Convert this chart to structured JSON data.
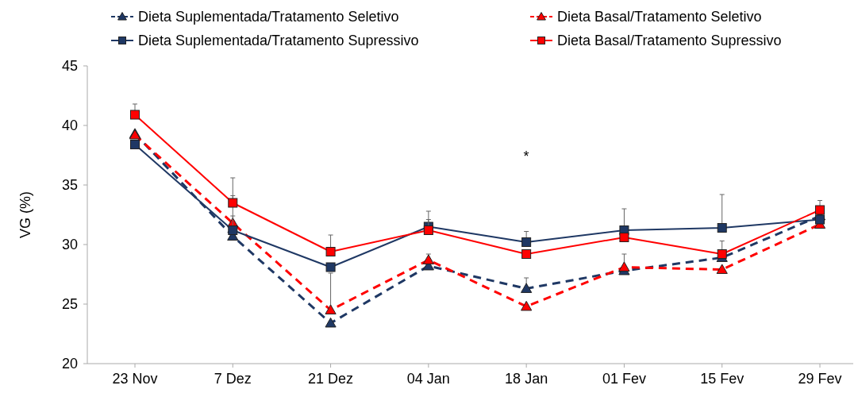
{
  "chart_data": {
    "type": "line",
    "ylabel": "VG (%)",
    "categories": [
      "23 Nov",
      "7 Dez",
      "21 Dez",
      "04 Jan",
      "18 Jan",
      "01 Fev",
      "15 Fev",
      "29 Fev"
    ],
    "ylim": [
      20,
      45
    ],
    "yticks": [
      20,
      25,
      30,
      35,
      40,
      45
    ],
    "grid": false,
    "legend": "top",
    "series": [
      {
        "name": "Dieta Suplementada/Tratamento Seletivo",
        "color": "#1f3864",
        "line_style": "dashed",
        "marker": "triangle",
        "values": [
          39.3,
          30.7,
          23.4,
          28.2,
          26.3,
          27.8,
          28.9,
          32.4
        ],
        "errors": [
          null,
          null,
          null,
          null,
          [
            26.3,
            27.2
          ],
          null,
          null,
          null
        ]
      },
      {
        "name": "Dieta Basal/Tratamento Seletivo",
        "color": "#ff0000",
        "line_style": "dashed",
        "marker": "triangle",
        "values": [
          39.2,
          31.8,
          24.5,
          28.7,
          24.8,
          28.1,
          27.9,
          31.7
        ],
        "errors": [
          null,
          [
            31.8,
            32.4
          ],
          [
            24.5,
            27.6
          ],
          [
            28.7,
            29.2
          ],
          null,
          [
            28.1,
            29.2
          ],
          null,
          null
        ]
      },
      {
        "name": "Dieta Suplementada/Tratamento Supressivo",
        "color": "#1f3864",
        "line_style": "solid",
        "marker": "square",
        "values": [
          38.4,
          31.2,
          28.1,
          31.5,
          30.2,
          31.2,
          31.4,
          32.1
        ],
        "errors": [
          null,
          [
            31.2,
            34.1
          ],
          null,
          [
            31.5,
            32.8
          ],
          [
            30.2,
            31.1
          ],
          [
            31.2,
            33.0
          ],
          [
            31.4,
            34.2
          ],
          null
        ]
      },
      {
        "name": "Dieta Basal/Tratamento Supressivo",
        "color": "#ff0000",
        "line_style": "solid",
        "marker": "square",
        "values": [
          40.9,
          33.5,
          29.4,
          31.2,
          29.2,
          30.6,
          29.2,
          32.9
        ],
        "errors": [
          [
            40.9,
            41.8
          ],
          [
            33.5,
            35.6
          ],
          [
            29.4,
            30.8
          ],
          [
            31.2,
            32.1
          ],
          null,
          null,
          [
            29.2,
            30.3
          ],
          [
            32.9,
            33.7
          ]
        ]
      }
    ],
    "annotations": [
      "*"
    ]
  }
}
